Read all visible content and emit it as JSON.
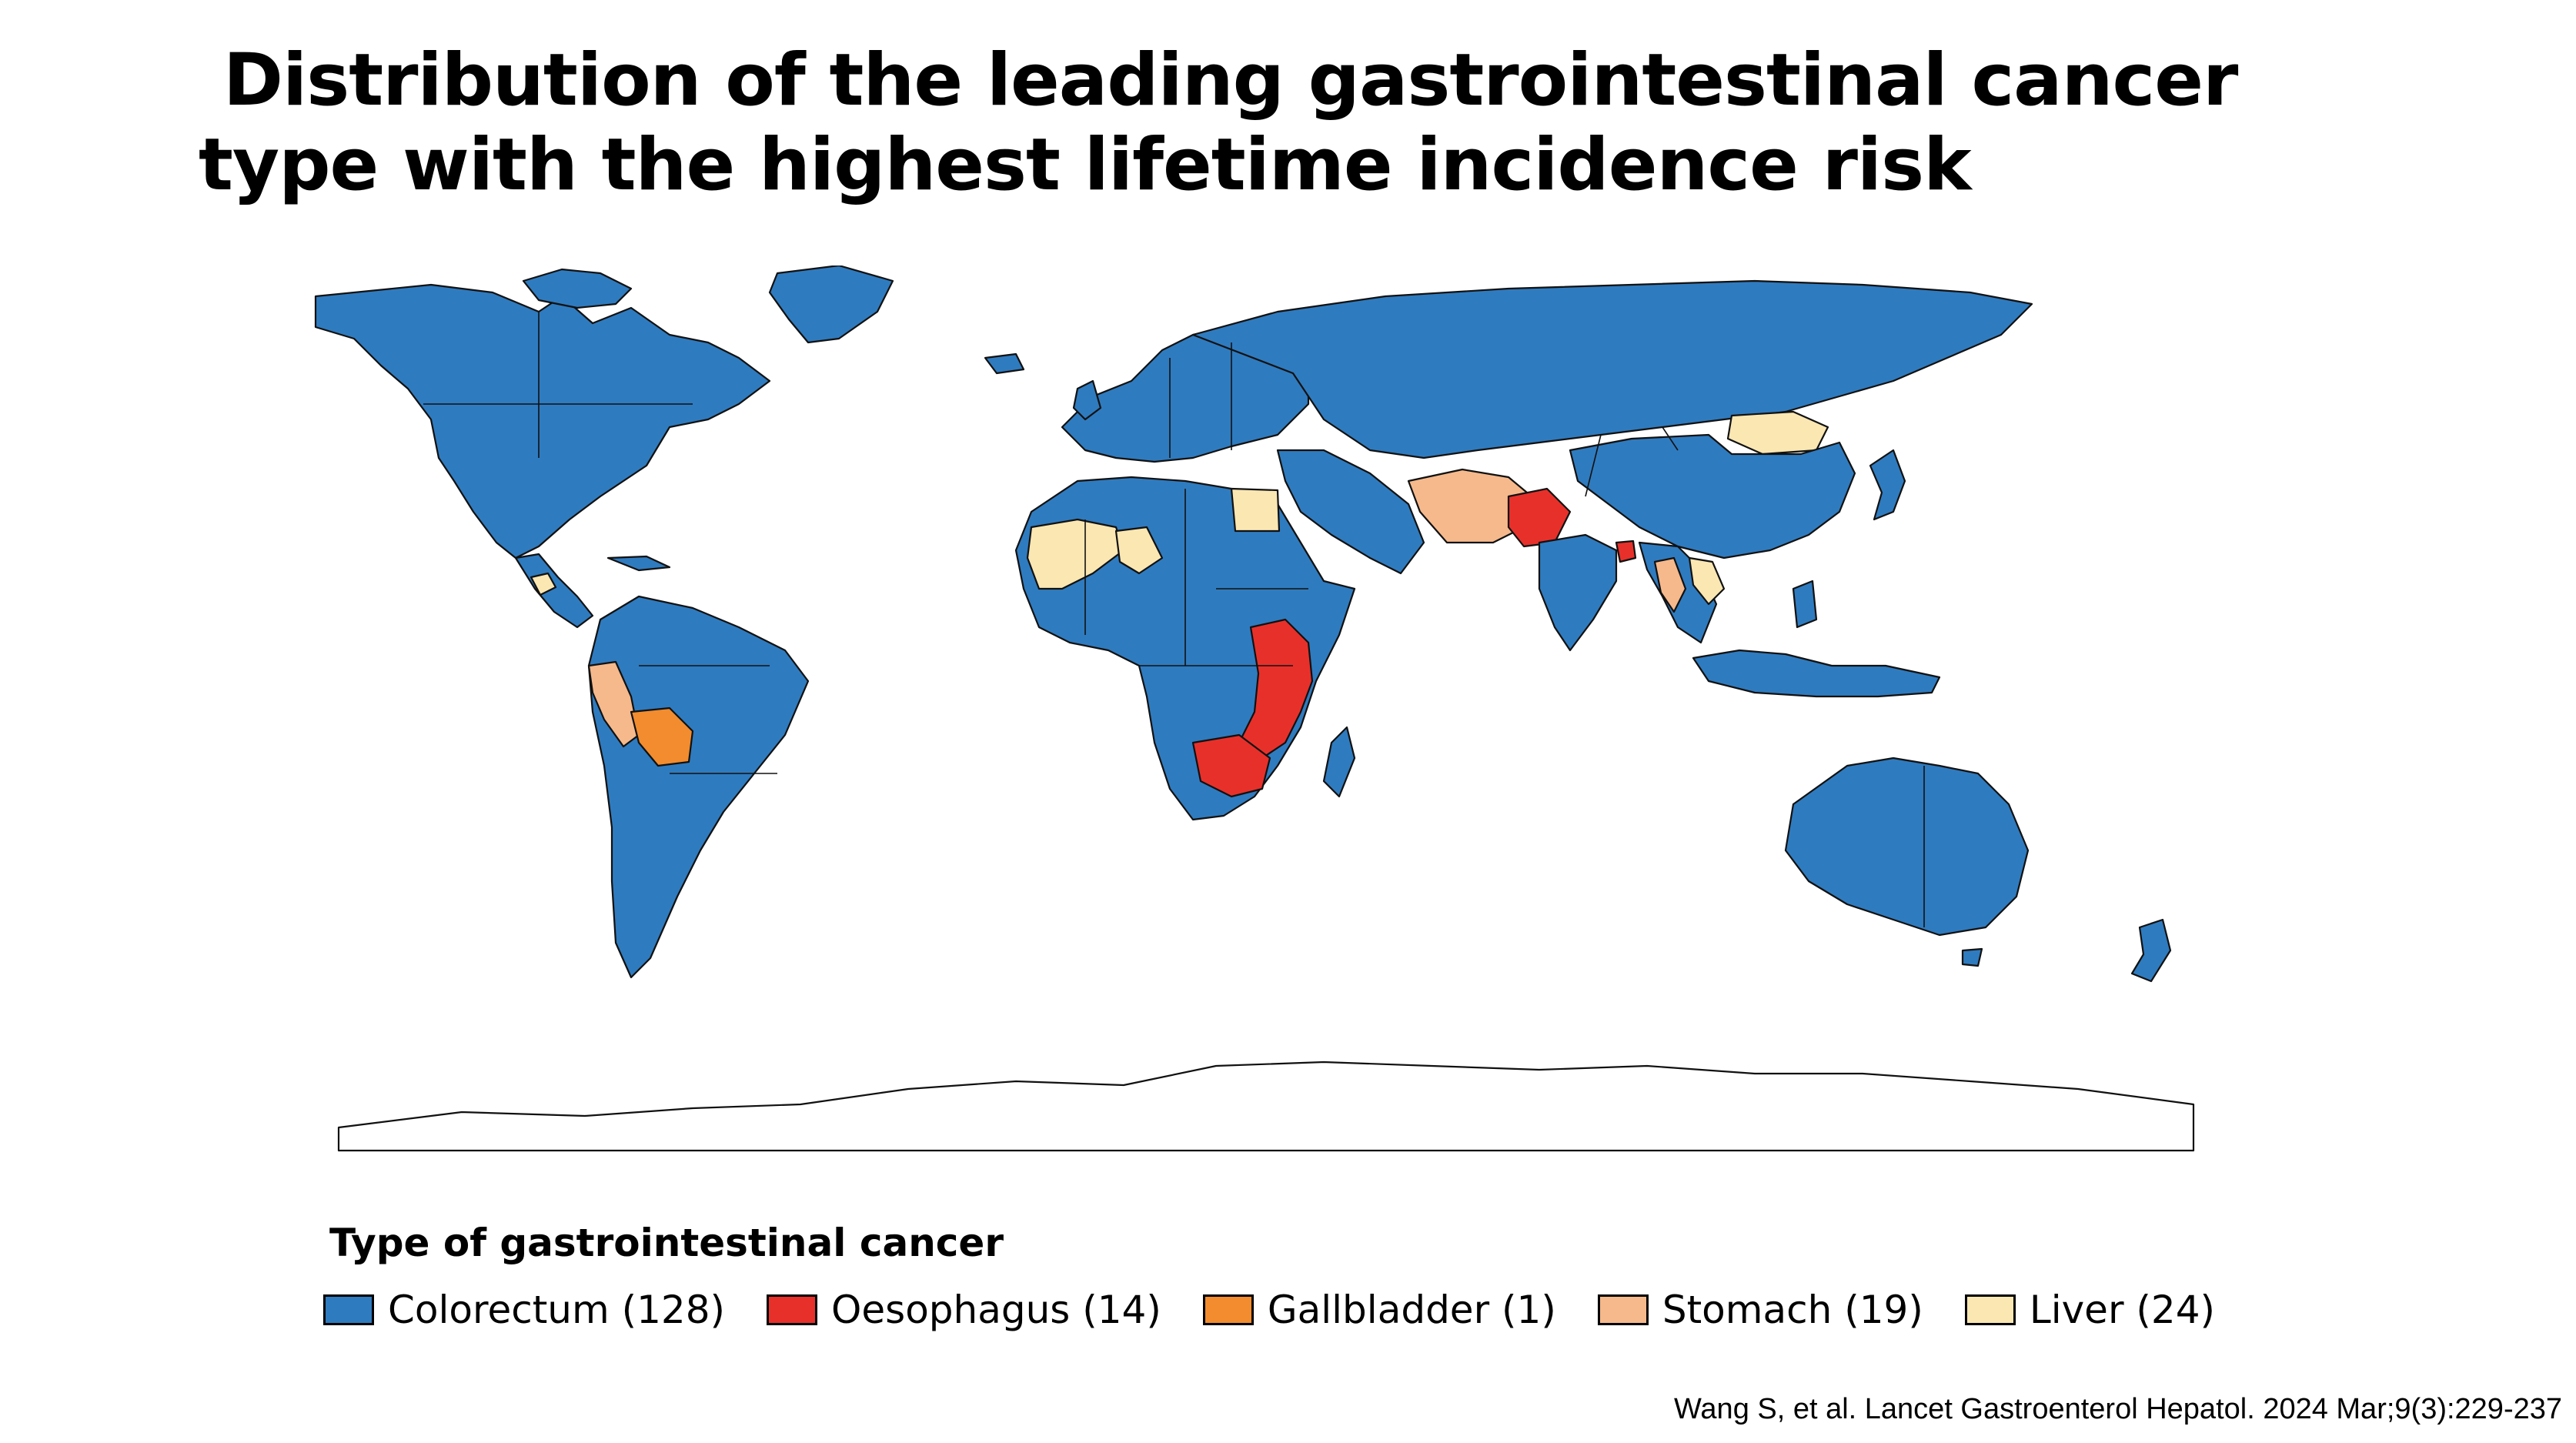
{
  "slide": {
    "title_line1": "Distribution of the leading gastrointestinal cancer",
    "title_line2": "type with the highest lifetime incidence risk",
    "citation": "Wang S, et al. Lancet Gastroenterol Hepatol. 2024 Mar;9(3):229-237"
  },
  "legend": {
    "title": "Type of gastrointestinal cancer",
    "items": [
      {
        "label": "Colorectum (128)",
        "color": "#2f7bbf"
      },
      {
        "label": "Oesophagus (14)",
        "color": "#e8302a"
      },
      {
        "label": "Gallbladder (1)",
        "color": "#f28c2e"
      },
      {
        "label": "Stomach (19)",
        "color": "#f6b98c"
      },
      {
        "label": "Liver (24)",
        "color": "#fbe7b2"
      }
    ]
  },
  "map_data": {
    "type": "choropleth",
    "projection": "world",
    "categories": [
      "Colorectum",
      "Oesophagus",
      "Gallbladder",
      "Stomach",
      "Liver"
    ],
    "country_counts": {
      "Colorectum": 128,
      "Oesophagus": 14,
      "Gallbladder": 1,
      "Stomach": 19,
      "Liver": 24
    },
    "colors": {
      "Colorectum": "#2f7bbf",
      "Oesophagus": "#e8302a",
      "Gallbladder": "#f28c2e",
      "Stomach": "#f6b98c",
      "Liver": "#fbe7b2",
      "border": "#111111",
      "ocean": "#ffffff",
      "antarctica": "#ffffff"
    }
  }
}
